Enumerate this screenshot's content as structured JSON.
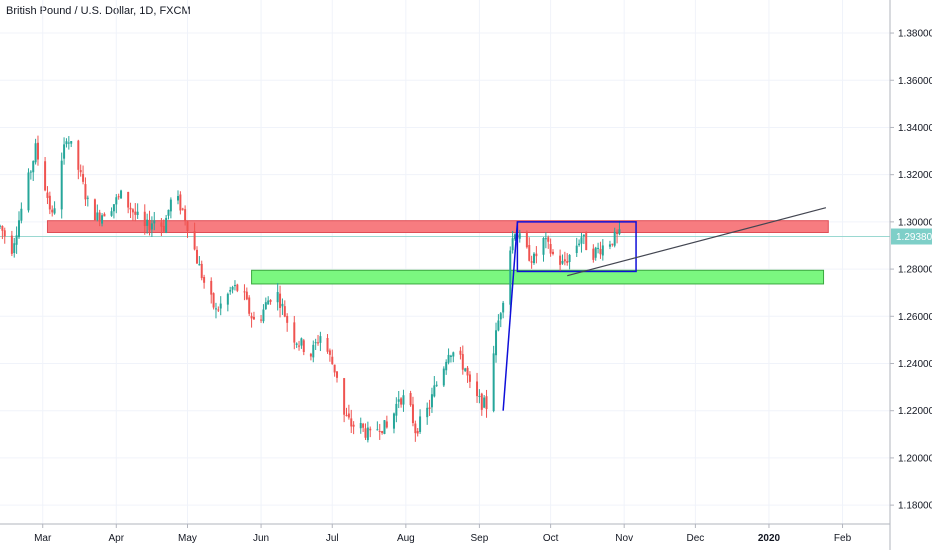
{
  "header": {
    "title": "British Pound / U.S. Dollar, 1D, FXCM"
  },
  "colors": {
    "up": "#26a69a",
    "down": "#ef5350",
    "grid": "#f0f3fa",
    "resistance_zone": "#f77c80",
    "support_zone": "#7bf780",
    "range_box": "#0f0fd9",
    "trendline": "#434651",
    "last_price_bg": "#7ecfc8",
    "last_price_line": "#9ad8d1"
  },
  "chart_data": {
    "type": "candlestick",
    "symbol": "British Pound / U.S. Dollar",
    "timeframe": "1D",
    "source": "FXCM",
    "last_price": "1.29380",
    "last_price_value": 1.2938,
    "ylim": [
      1.172,
      1.394
    ],
    "y_ticks": [
      "1.38000",
      "1.36000",
      "1.34000",
      "1.32000",
      "1.30000",
      "1.28000",
      "1.26000",
      "1.24000",
      "1.22000",
      "1.20000",
      "1.18000"
    ],
    "x_ticks": [
      "Mar",
      "Apr",
      "May",
      "Jun",
      "Jul",
      "Aug",
      "Sep",
      "Oct",
      "Nov",
      "Dec",
      "2020",
      "Feb"
    ],
    "x_tick_days": [
      41,
      72,
      102,
      133,
      163,
      194,
      225,
      255,
      286,
      316,
      347,
      378
    ],
    "xlim_days": [
      23,
      398
    ],
    "anchors": [
      [
        23,
        1.298
      ],
      [
        28,
        1.289
      ],
      [
        31,
        1.301
      ],
      [
        35,
        1.318
      ],
      [
        38,
        1.331
      ],
      [
        42,
        1.315
      ],
      [
        45,
        1.302
      ],
      [
        48,
        1.318
      ],
      [
        51,
        1.337
      ],
      [
        55,
        1.326
      ],
      [
        60,
        1.308
      ],
      [
        64,
        1.302
      ],
      [
        70,
        1.307
      ],
      [
        74,
        1.311
      ],
      [
        78,
        1.306
      ],
      [
        84,
        1.297
      ],
      [
        88,
        1.301
      ],
      [
        92,
        1.298
      ],
      [
        96,
        1.312
      ],
      [
        100,
        1.305
      ],
      [
        103,
        1.296
      ],
      [
        106,
        1.284
      ],
      [
        110,
        1.271
      ],
      [
        114,
        1.262
      ],
      [
        117,
        1.266
      ],
      [
        121,
        1.272
      ],
      [
        125,
        1.271
      ],
      [
        128,
        1.262
      ],
      [
        131,
        1.256
      ],
      [
        135,
        1.265
      ],
      [
        139,
        1.272
      ],
      [
        143,
        1.261
      ],
      [
        146,
        1.252
      ],
      [
        150,
        1.248
      ],
      [
        154,
        1.244
      ],
      [
        158,
        1.252
      ],
      [
        161,
        1.245
      ],
      [
        165,
        1.235
      ],
      [
        168,
        1.218
      ],
      [
        171,
        1.214
      ],
      [
        175,
        1.213
      ],
      [
        179,
        1.209
      ],
      [
        183,
        1.214
      ],
      [
        187,
        1.212
      ],
      [
        191,
        1.226
      ],
      [
        195,
        1.224
      ],
      [
        198,
        1.212
      ],
      [
        201,
        1.216
      ],
      [
        204,
        1.222
      ],
      [
        206,
        1.229
      ],
      [
        209,
        1.236
      ],
      [
        212,
        1.246
      ],
      [
        215,
        1.244
      ],
      [
        219,
        1.238
      ],
      [
        222,
        1.226
      ],
      [
        225,
        1.224
      ],
      [
        228,
        1.222
      ],
      [
        230,
        1.24
      ],
      [
        233,
        1.258
      ],
      [
        236,
        1.274
      ],
      [
        238,
        1.289
      ],
      [
        240,
        1.297
      ],
      [
        244,
        1.288
      ],
      [
        248,
        1.284
      ],
      [
        252,
        1.292
      ],
      [
        256,
        1.286
      ],
      [
        260,
        1.282
      ],
      [
        264,
        1.287
      ],
      [
        268,
        1.294
      ],
      [
        272,
        1.286
      ],
      [
        276,
        1.289
      ],
      [
        280,
        1.292
      ],
      [
        284,
        1.294
      ]
    ],
    "zones": [
      {
        "name": "resistance",
        "from_day": 43,
        "to_day": 372,
        "low": 1.2955,
        "high": 1.3005
      },
      {
        "name": "support",
        "from_day": 129,
        "to_day": 370,
        "low": 1.2737,
        "high": 1.2795
      }
    ],
    "range_box": {
      "from_day": 241,
      "to_day": 291,
      "low": 1.279,
      "high": 1.3
    },
    "impulse_line": [
      [
        235,
        1.22
      ],
      [
        241,
        1.2998
      ]
    ],
    "trendline": [
      [
        262,
        1.2772
      ],
      [
        371,
        1.306
      ]
    ]
  }
}
